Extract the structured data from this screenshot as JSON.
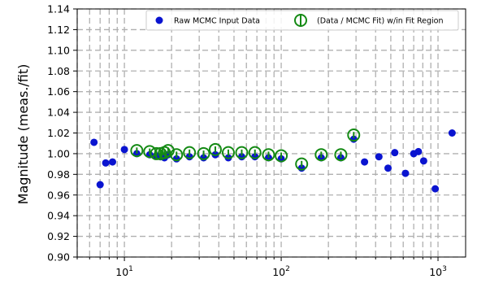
{
  "chart_data": {
    "type": "scatter",
    "title": "",
    "xlabel": "",
    "ylabel": "Magnitude (meas./fit)",
    "xscale": "log",
    "xlim": [
      5,
      1500
    ],
    "ylim": [
      0.9,
      1.14
    ],
    "y_ticks": [
      "0.90",
      "0.92",
      "0.94",
      "0.96",
      "0.98",
      "1.00",
      "1.02",
      "1.04",
      "1.06",
      "1.08",
      "1.10",
      "1.12",
      "1.14"
    ],
    "x_ticks": [
      {
        "value": 10,
        "base": "10",
        "exp": "1"
      },
      {
        "value": 100,
        "base": "10",
        "exp": "2"
      },
      {
        "value": 1000,
        "base": "10",
        "exp": "3"
      }
    ],
    "grid": true,
    "legend_position": "top-right",
    "colors": {
      "raw": "#0a14d0",
      "fit": "#148a14",
      "grid": "#b0b0b0"
    },
    "series": [
      {
        "name": "Raw MCMC Input Data",
        "marker": "filled-circle",
        "color": "#0a14d0",
        "x": [
          6.4,
          7.0,
          7.6,
          8.4,
          10.0,
          12.0,
          14.5,
          16.0,
          17.0,
          18.0,
          19.0,
          21.5,
          26.0,
          32.0,
          38.0,
          46.0,
          56.0,
          68.0,
          83.0,
          100.0,
          135.0,
          180.0,
          240.0,
          290.0,
          340.0,
          420.0,
          480.0,
          530.0,
          620.0,
          700.0,
          750.0,
          810.0,
          960.0,
          1230.0
        ],
        "y": [
          1.011,
          0.97,
          0.991,
          0.992,
          1.004,
          1.0,
          0.999,
          0.998,
          0.997,
          0.996,
          0.999,
          0.995,
          0.997,
          0.996,
          0.999,
          0.996,
          0.997,
          0.997,
          0.996,
          0.995,
          0.986,
          0.996,
          0.996,
          1.014,
          0.992,
          0.997,
          0.986,
          1.001,
          0.981,
          1.0,
          1.002,
          0.993,
          0.966,
          1.02
        ]
      },
      {
        "name": "(Data / MCMC Fit) w/in Fit Region",
        "marker": "open-circle-errorbar",
        "color": "#148a14",
        "x": [
          12.0,
          14.5,
          16.0,
          17.0,
          18.0,
          19.0,
          21.5,
          26.0,
          32.0,
          38.0,
          46.0,
          56.0,
          68.0,
          83.0,
          100.0,
          135.0,
          180.0,
          240.0,
          290.0
        ],
        "y": [
          1.003,
          1.002,
          1.0,
          1.0,
          1.001,
          1.003,
          0.999,
          1.001,
          1.0,
          1.004,
          1.001,
          1.001,
          1.001,
          0.999,
          0.998,
          0.99,
          0.999,
          0.999,
          1.018
        ],
        "yerr": [
          0.003,
          0.003,
          0.003,
          0.003,
          0.003,
          0.003,
          0.003,
          0.003,
          0.003,
          0.003,
          0.003,
          0.003,
          0.003,
          0.003,
          0.003,
          0.003,
          0.003,
          0.003,
          0.003
        ]
      }
    ]
  }
}
